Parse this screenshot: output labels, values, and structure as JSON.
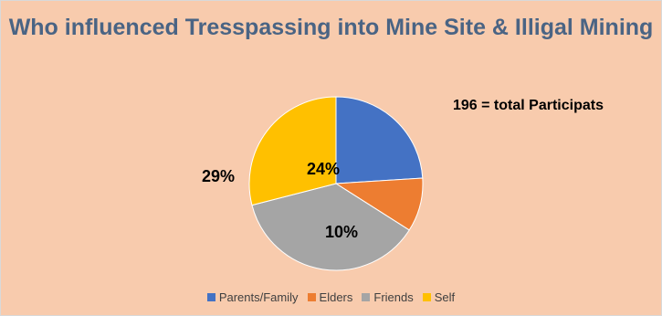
{
  "chart_data": {
    "type": "pie",
    "title": "Who influenced Tresspassing into Mine Site & Illigal Mining",
    "note": "196 = total Participats",
    "slices": [
      {
        "name": "Parents/Family",
        "label": "24%",
        "value": 24,
        "color": "#4472c4"
      },
      {
        "name": "Elders",
        "label": "10%",
        "value": 10,
        "color": "#ed7d31"
      },
      {
        "name": "Friends",
        "label": "",
        "value": 37,
        "color": "#a5a5a5"
      },
      {
        "name": "Self",
        "label": "29%",
        "value": 29,
        "color": "#ffc000"
      }
    ],
    "legend_position": "bottom",
    "start_angle": "12 o'clock, clockwise"
  }
}
